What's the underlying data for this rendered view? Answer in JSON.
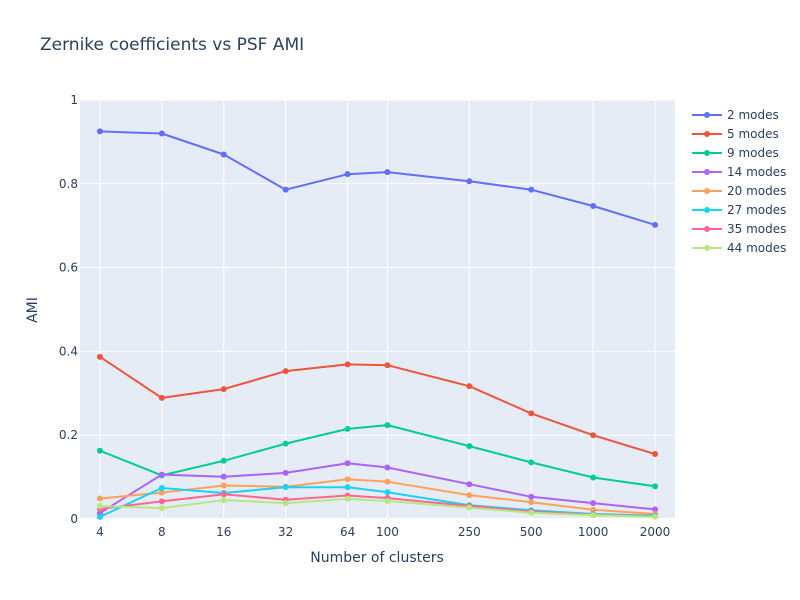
{
  "chart_data": {
    "type": "line",
    "title": "Zernike coefficients vs PSF AMI",
    "xlabel": "Number of clusters",
    "ylabel": "AMI",
    "x_scale": "log",
    "x": [
      4,
      8,
      16,
      32,
      64,
      100,
      250,
      500,
      1000,
      2000
    ],
    "x_tick_labels": [
      "4",
      "8",
      "16",
      "32",
      "64",
      "100",
      "250",
      "500",
      "1000",
      "2000"
    ],
    "ylim": [
      0,
      1
    ],
    "y_ticks": [
      0,
      0.2,
      0.4,
      0.6,
      0.8,
      1
    ],
    "y_tick_labels": [
      "0",
      "0.2",
      "0.4",
      "0.6",
      "0.8",
      "1"
    ],
    "grid": true,
    "legend_position": "right",
    "series": [
      {
        "name": "2 modes",
        "color": "#636efa",
        "values": [
          0.925,
          0.92,
          0.87,
          0.786,
          0.823,
          0.828,
          0.806,
          0.786,
          0.747,
          0.702
        ]
      },
      {
        "name": "5 modes",
        "color": "#ef553b",
        "values": [
          0.387,
          0.289,
          0.31,
          0.353,
          0.369,
          0.367,
          0.317,
          0.252,
          0.2,
          0.155
        ]
      },
      {
        "name": "9 modes",
        "color": "#00cc96",
        "values": [
          0.163,
          0.104,
          0.139,
          0.18,
          0.215,
          0.224,
          0.174,
          0.135,
          0.099,
          0.078
        ]
      },
      {
        "name": "14 modes",
        "color": "#ab63fa",
        "values": [
          0.014,
          0.106,
          0.101,
          0.11,
          0.133,
          0.123,
          0.083,
          0.053,
          0.038,
          0.023
        ]
      },
      {
        "name": "20 modes",
        "color": "#ffa15a",
        "values": [
          0.049,
          0.063,
          0.08,
          0.077,
          0.095,
          0.089,
          0.057,
          0.04,
          0.022,
          0.012
        ]
      },
      {
        "name": "27 modes",
        "color": "#19d3f3",
        "values": [
          0.005,
          0.074,
          0.062,
          0.076,
          0.076,
          0.064,
          0.033,
          0.021,
          0.012,
          0.008
        ]
      },
      {
        "name": "35 modes",
        "color": "#ff6692",
        "values": [
          0.024,
          0.042,
          0.059,
          0.046,
          0.056,
          0.05,
          0.031,
          0.018,
          0.01,
          0.006
        ]
      },
      {
        "name": "44 modes",
        "color": "#b6e880",
        "values": [
          0.031,
          0.026,
          0.045,
          0.038,
          0.048,
          0.043,
          0.027,
          0.015,
          0.009,
          0.005
        ]
      }
    ]
  },
  "colors": {
    "plot_background": "#e5ecf6",
    "grid": "#ffffff",
    "text": "#2a3f5f"
  }
}
